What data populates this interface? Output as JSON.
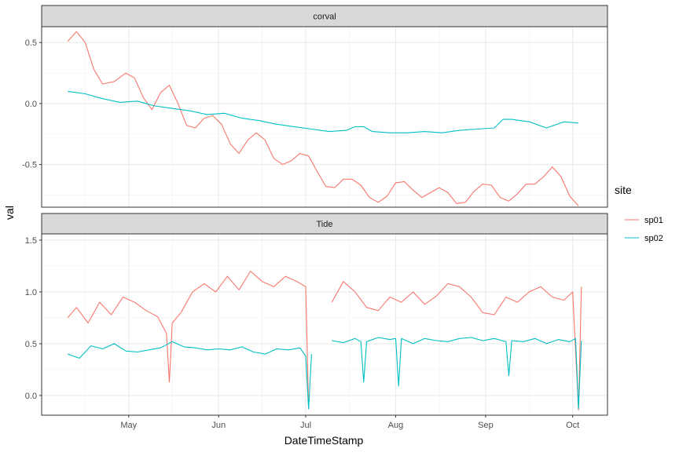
{
  "chart_data": {
    "type": "line",
    "xlabel": "DateTimeStamp",
    "ylabel": "val",
    "x_ticks": [
      {
        "label": "May",
        "date": "2018-05-01"
      },
      {
        "label": "Jun",
        "date": "2018-06-01"
      },
      {
        "label": "Jul",
        "date": "2018-07-01"
      },
      {
        "label": "Aug",
        "date": "2018-08-01"
      },
      {
        "label": "Sep",
        "date": "2018-09-01"
      },
      {
        "label": "Oct",
        "date": "2018-10-01"
      }
    ],
    "xlim": [
      "2018-04-01",
      "2018-10-13"
    ],
    "legend": {
      "title": "site",
      "position": "right",
      "entries": [
        {
          "name": "sp01",
          "color": "#F8766D"
        },
        {
          "name": "sp02",
          "color": "#00BFC4"
        }
      ]
    },
    "panels": [
      {
        "strip": "corval",
        "ylim": [
          -0.85,
          0.63
        ],
        "y_ticks": [
          0.5,
          0.0,
          -0.5
        ],
        "y_tick_labels": [
          "0.5",
          "0.0",
          "-0.5"
        ],
        "series": [
          {
            "name": "sp01",
            "color": "#F8766D",
            "x": [
              "2018-04-10",
              "2018-04-13",
              "2018-04-16",
              "2018-04-19",
              "2018-04-22",
              "2018-04-26",
              "2018-04-30",
              "2018-05-03",
              "2018-05-06",
              "2018-05-09",
              "2018-05-12",
              "2018-05-15",
              "2018-05-18",
              "2018-05-21",
              "2018-05-24",
              "2018-05-27",
              "2018-05-30",
              "2018-06-02",
              "2018-06-05",
              "2018-06-08",
              "2018-06-11",
              "2018-06-14",
              "2018-06-17",
              "2018-06-20",
              "2018-06-23",
              "2018-06-26",
              "2018-06-29",
              "2018-07-02",
              "2018-07-05",
              "2018-07-08",
              "2018-07-11",
              "2018-07-14",
              "2018-07-17",
              "2018-07-20",
              "2018-07-23",
              "2018-07-26",
              "2018-07-29",
              "2018-08-01",
              "2018-08-04",
              "2018-08-07",
              "2018-08-10",
              "2018-08-13",
              "2018-08-16",
              "2018-08-19",
              "2018-08-22",
              "2018-08-25",
              "2018-08-28",
              "2018-08-31",
              "2018-09-03",
              "2018-09-06",
              "2018-09-09",
              "2018-09-12",
              "2018-09-15",
              "2018-09-18",
              "2018-09-21",
              "2018-09-24",
              "2018-09-27",
              "2018-09-30",
              "2018-10-03"
            ],
            "values": [
              0.51,
              0.59,
              0.5,
              0.28,
              0.16,
              0.18,
              0.25,
              0.21,
              0.05,
              -0.05,
              0.09,
              0.15,
              0.0,
              -0.18,
              -0.2,
              -0.12,
              -0.1,
              -0.17,
              -0.33,
              -0.41,
              -0.3,
              -0.24,
              -0.3,
              -0.45,
              -0.5,
              -0.47,
              -0.41,
              -0.43,
              -0.56,
              -0.68,
              -0.69,
              -0.62,
              -0.62,
              -0.67,
              -0.77,
              -0.81,
              -0.76,
              -0.65,
              -0.64,
              -0.71,
              -0.77,
              -0.73,
              -0.69,
              -0.73,
              -0.82,
              -0.81,
              -0.72,
              -0.66,
              -0.67,
              -0.77,
              -0.8,
              -0.74,
              -0.66,
              -0.66,
              -0.6,
              -0.52,
              -0.6,
              -0.76,
              -0.84
            ]
          },
          {
            "name": "sp02",
            "color": "#00BFC4",
            "x": [
              "2018-04-10",
              "2018-04-16",
              "2018-04-22",
              "2018-04-28",
              "2018-05-04",
              "2018-05-10",
              "2018-05-16",
              "2018-05-22",
              "2018-05-28",
              "2018-06-03",
              "2018-06-09",
              "2018-06-15",
              "2018-06-21",
              "2018-06-27",
              "2018-07-03",
              "2018-07-09",
              "2018-07-15",
              "2018-07-18",
              "2018-07-21",
              "2018-07-24",
              "2018-07-30",
              "2018-08-05",
              "2018-08-11",
              "2018-08-17",
              "2018-08-23",
              "2018-08-29",
              "2018-09-04",
              "2018-09-07",
              "2018-09-10",
              "2018-09-16",
              "2018-09-22",
              "2018-09-28",
              "2018-10-03"
            ],
            "values": [
              0.1,
              0.08,
              0.04,
              0.01,
              0.02,
              -0.02,
              -0.04,
              -0.06,
              -0.09,
              -0.08,
              -0.12,
              -0.14,
              -0.17,
              -0.19,
              -0.21,
              -0.23,
              -0.22,
              -0.19,
              -0.19,
              -0.23,
              -0.24,
              -0.24,
              -0.23,
              -0.24,
              -0.22,
              -0.21,
              -0.2,
              -0.13,
              -0.13,
              -0.15,
              -0.2,
              -0.15,
              -0.16
            ]
          }
        ]
      },
      {
        "strip": "Tide",
        "ylim": [
          -0.19,
          1.56
        ],
        "y_ticks": [
          1.5,
          1.0,
          0.5,
          0.0
        ],
        "y_tick_labels": [
          "1.5",
          "1.0",
          "0.5",
          "0.0"
        ],
        "series": [
          {
            "name": "sp01",
            "color": "#F8766D",
            "x": [
              "2018-04-10",
              "2018-04-13",
              "2018-04-17",
              "2018-04-21",
              "2018-04-25",
              "2018-04-29",
              "2018-05-03",
              "2018-05-07",
              "2018-05-11",
              "2018-05-14",
              "2018-05-15",
              "2018-05-16",
              "2018-05-19",
              "2018-05-23",
              "2018-05-27",
              "2018-05-31",
              "2018-06-04",
              "2018-06-08",
              "2018-06-12",
              "2018-06-16",
              "2018-06-20",
              "2018-06-24",
              "2018-06-28",
              "2018-07-01",
              "2018-07-02",
              null,
              "2018-07-10",
              "2018-07-14",
              "2018-07-18",
              "2018-07-22",
              "2018-07-26",
              "2018-07-30",
              "2018-08-03",
              "2018-08-07",
              "2018-08-11",
              "2018-08-15",
              "2018-08-19",
              "2018-08-23",
              "2018-08-27",
              "2018-08-31",
              "2018-09-04",
              "2018-09-08",
              "2018-09-12",
              "2018-09-16",
              "2018-09-20",
              "2018-09-24",
              "2018-09-28",
              "2018-10-01",
              "2018-10-03",
              "2018-10-04"
            ],
            "values": [
              0.75,
              0.85,
              0.7,
              0.9,
              0.78,
              0.95,
              0.9,
              0.82,
              0.76,
              0.6,
              0.13,
              0.7,
              0.8,
              1.0,
              1.08,
              1.0,
              1.15,
              1.02,
              1.2,
              1.1,
              1.05,
              1.15,
              1.1,
              1.05,
              -0.12,
              null,
              0.9,
              1.1,
              1.0,
              0.85,
              0.82,
              0.95,
              0.9,
              1.0,
              0.88,
              0.96,
              1.08,
              1.05,
              0.95,
              0.8,
              0.78,
              0.95,
              0.9,
              1.0,
              1.05,
              0.95,
              0.92,
              1.0,
              -0.14,
              1.05
            ]
          },
          {
            "name": "sp02",
            "color": "#00BFC4",
            "x": [
              "2018-04-10",
              "2018-04-14",
              "2018-04-18",
              "2018-04-22",
              "2018-04-26",
              "2018-04-30",
              "2018-05-04",
              "2018-05-08",
              "2018-05-12",
              "2018-05-16",
              "2018-05-20",
              "2018-05-24",
              "2018-05-28",
              "2018-06-01",
              "2018-06-05",
              "2018-06-09",
              "2018-06-13",
              "2018-06-17",
              "2018-06-21",
              "2018-06-25",
              "2018-06-29",
              "2018-07-01",
              "2018-07-02",
              "2018-07-03",
              null,
              "2018-07-10",
              "2018-07-14",
              "2018-07-18",
              "2018-07-20",
              "2018-07-21",
              "2018-07-22",
              "2018-07-26",
              "2018-07-30",
              "2018-08-01",
              "2018-08-02",
              "2018-08-03",
              "2018-08-07",
              "2018-08-11",
              "2018-08-15",
              "2018-08-19",
              "2018-08-23",
              "2018-08-27",
              "2018-08-31",
              "2018-09-04",
              "2018-09-08",
              "2018-09-09",
              "2018-09-10",
              "2018-09-14",
              "2018-09-18",
              "2018-09-22",
              "2018-09-26",
              "2018-09-30",
              "2018-10-02",
              "2018-10-03",
              "2018-10-04"
            ],
            "values": [
              0.4,
              0.36,
              0.48,
              0.45,
              0.5,
              0.43,
              0.42,
              0.44,
              0.46,
              0.52,
              0.47,
              0.46,
              0.44,
              0.45,
              0.44,
              0.47,
              0.42,
              0.4,
              0.45,
              0.44,
              0.46,
              0.38,
              -0.13,
              0.4,
              null,
              0.53,
              0.51,
              0.55,
              0.52,
              0.13,
              0.52,
              0.56,
              0.54,
              0.55,
              0.09,
              0.55,
              0.5,
              0.55,
              0.53,
              0.52,
              0.55,
              0.56,
              0.53,
              0.55,
              0.52,
              0.19,
              0.53,
              0.52,
              0.55,
              0.5,
              0.54,
              0.52,
              0.55,
              -0.13,
              0.53
            ]
          }
        ]
      }
    ]
  }
}
